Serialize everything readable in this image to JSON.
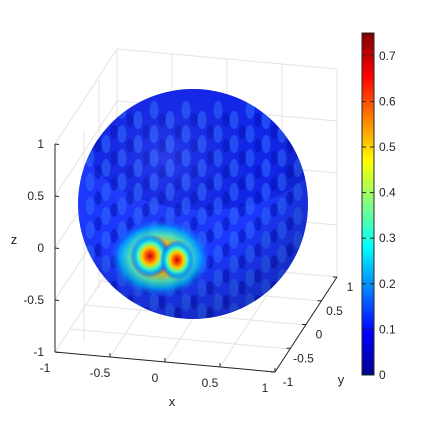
{
  "chart_data": {
    "type": "heatmap",
    "surface": "unit-sphere",
    "title": "",
    "xlabel": "x",
    "ylabel": "y",
    "zlabel": "z",
    "xlim": [
      -1,
      1
    ],
    "ylim": [
      -1,
      1
    ],
    "zlim": [
      -1,
      1
    ],
    "x_ticks": [
      "-1",
      "-0.5",
      "0",
      "0.5",
      "1"
    ],
    "y_ticks": [
      "-1",
      "-0.5",
      "0",
      "0.5",
      "1"
    ],
    "z_ticks": [
      "-1",
      "-0.5",
      "0",
      "0.5",
      "1"
    ],
    "grid": true,
    "colormap": "jet",
    "colorbar": {
      "position": "right",
      "range": [
        0,
        0.75
      ],
      "ticks": [
        "0",
        "0.1",
        "0.2",
        "0.3",
        "0.4",
        "0.5",
        "0.6",
        "0.7"
      ]
    },
    "peak": {
      "value": 0.75,
      "x": -0.05,
      "y": -0.95,
      "z": -0.15
    },
    "background_level": 0.1
  }
}
